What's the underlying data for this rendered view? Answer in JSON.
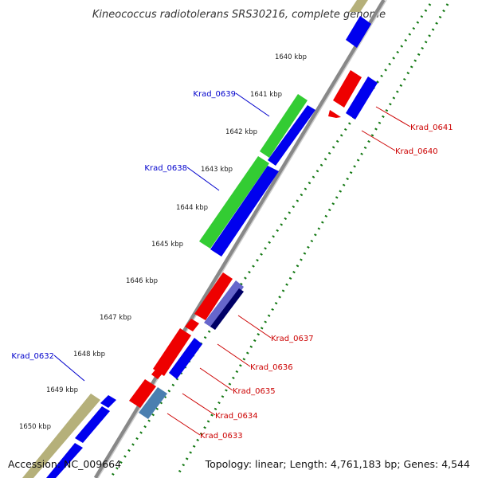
{
  "title": "Kineococcus radiotolerans SRS30216, complete genome",
  "footer": {
    "accession": "Accession: NC_009664",
    "summary": "Topology: linear; Length: 4,761,183 bp; Genes: 4,544"
  },
  "kbp_ticks": [
    "1640 kbp",
    "1641 kbp",
    "1642 kbp",
    "1643 kbp",
    "1644 kbp",
    "1645 kbp",
    "1646 kbp",
    "1647 kbp",
    "1648 kbp",
    "1649 kbp",
    "1650 kbp"
  ],
  "gene_labels_left": [
    "Krad_0639",
    "Krad_0638",
    "Krad_0632"
  ],
  "gene_labels_right": [
    "Krad_0641",
    "Krad_0640",
    "Krad_0637",
    "Krad_0636",
    "Krad_0635",
    "Krad_0634",
    "Krad_0633"
  ],
  "colors": {
    "forward_label": "#0000cc",
    "reverse_label": "#cc0000",
    "rna_green": "#33cc33",
    "cds_blue": "#0000ee",
    "cds_red": "#ee0000",
    "pseudo_olive": "#b5b07a",
    "dark_navy": "#000066",
    "steel_blue": "#4a7fb0",
    "axis_gray": "#888888",
    "tick_green": "#117711"
  }
}
